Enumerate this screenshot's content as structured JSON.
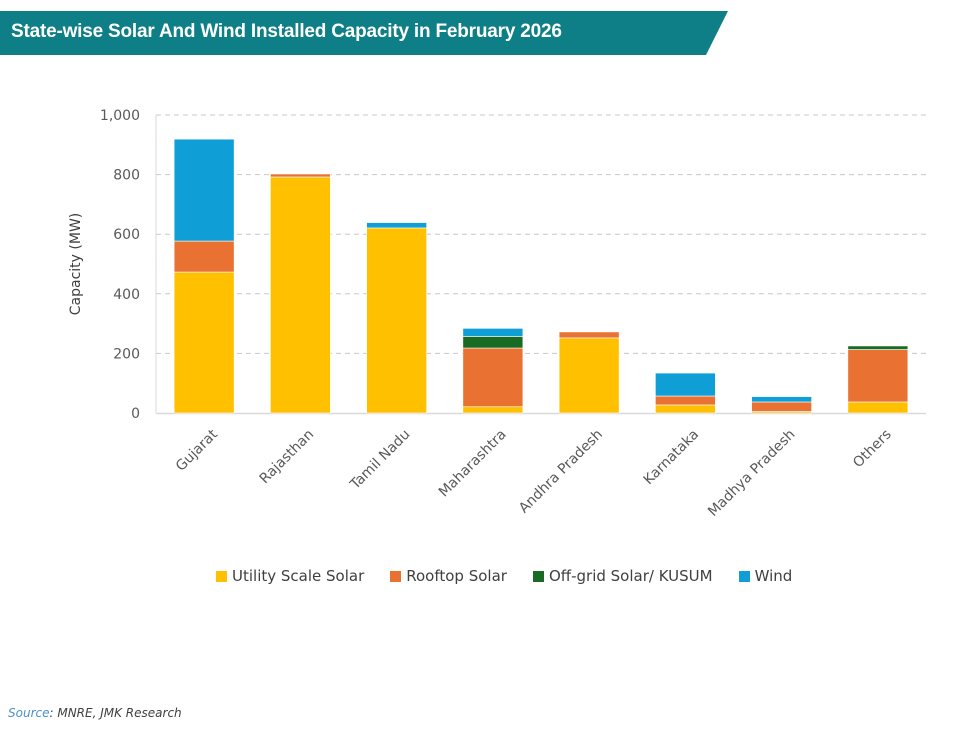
{
  "header": {
    "title": "State-wise Solar And Wind Installed Capacity in February 2026",
    "banner_color": "#0e7f87"
  },
  "source": {
    "label": "Source",
    "text": ": MNRE, JMK Research"
  },
  "chart_data": {
    "type": "bar",
    "stacked": true,
    "title": "State-wise Solar And Wind Installed Capacity in February 2026",
    "xlabel": "",
    "ylabel": "Capacity (MW)",
    "ylim": [
      0,
      1000
    ],
    "yticks": [
      0,
      200,
      400,
      600,
      800,
      1000
    ],
    "ytick_labels": [
      "0",
      "200",
      "400",
      "600",
      "800",
      "1,000"
    ],
    "grid": true,
    "legend_position": "bottom",
    "categories": [
      "Gujarat",
      "Rajasthan",
      "Tamil Nadu",
      "Maharashtra",
      "Andhra Pradesh",
      "Karnataka",
      "Madhya Pradesh",
      "Others"
    ],
    "series": [
      {
        "name": "Utility Scale Solar",
        "color": "#ffc000",
        "values": [
          473,
          792,
          621,
          21,
          252,
          27,
          5,
          37
        ]
      },
      {
        "name": "Rooftop Solar",
        "color": "#e97132",
        "values": [
          104,
          10,
          0,
          197,
          20,
          30,
          32,
          176
        ]
      },
      {
        "name": "Off-grid Solar/ KUSUM",
        "color": "#196b24",
        "values": [
          0,
          0,
          0,
          39,
          0,
          0,
          0,
          12
        ]
      },
      {
        "name": "Wind",
        "color": "#0f9ed5",
        "values": [
          342,
          0,
          18,
          27,
          0,
          77,
          18,
          0
        ]
      }
    ]
  }
}
